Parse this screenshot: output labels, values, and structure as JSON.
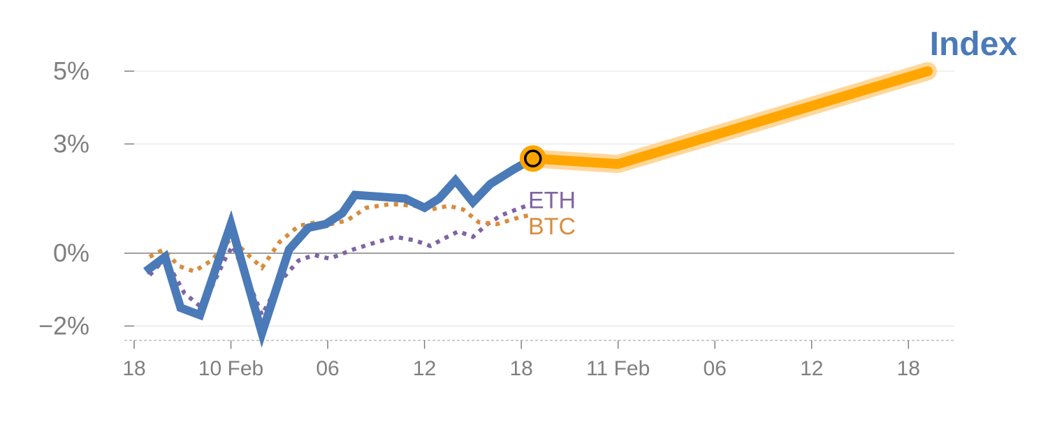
{
  "chart_data": {
    "type": "line",
    "title": "Index",
    "xlabel": "",
    "ylabel": "",
    "y_unit": "%",
    "ylim": [
      -2.4,
      5.4
    ],
    "yticks": [
      {
        "value": 5,
        "label": "5%"
      },
      {
        "value": 3,
        "label": "3%"
      },
      {
        "value": 0,
        "label": "0%"
      },
      {
        "value": -2,
        "label": "−2%"
      }
    ],
    "xlim": [
      0,
      85
    ],
    "xticks": [
      {
        "x": 0,
        "label": "18"
      },
      {
        "x": 10,
        "label": "10 Feb"
      },
      {
        "x": 20,
        "label": "06"
      },
      {
        "x": 30,
        "label": "12"
      },
      {
        "x": 40,
        "label": "18"
      },
      {
        "x": 50,
        "label": "11 Feb"
      },
      {
        "x": 60,
        "label": "06"
      },
      {
        "x": 70,
        "label": "12"
      },
      {
        "x": 80,
        "label": "18"
      }
    ],
    "grid": true,
    "zero_line": true,
    "series": [
      {
        "name": "",
        "style": "solid",
        "color": "#4a7ab8",
        "points": [
          [
            1.2,
            -0.5
          ],
          [
            3.2,
            -0.1
          ],
          [
            4.8,
            -1.5
          ],
          [
            6.8,
            -1.7
          ],
          [
            10.0,
            0.8
          ],
          [
            13.2,
            -2.2
          ],
          [
            16.0,
            0.1
          ],
          [
            18.0,
            0.7
          ],
          [
            19.8,
            0.8
          ],
          [
            21.5,
            1.1
          ],
          [
            22.8,
            1.6
          ],
          [
            25.5,
            1.55
          ],
          [
            28.0,
            1.5
          ],
          [
            30.0,
            1.25
          ],
          [
            31.5,
            1.5
          ],
          [
            33.2,
            2.0
          ],
          [
            35.0,
            1.4
          ],
          [
            36.8,
            1.9
          ],
          [
            39.2,
            2.3
          ],
          [
            41.2,
            2.6
          ]
        ]
      },
      {
        "name": "ETH",
        "style": "dotted",
        "color": "#8064a2",
        "points": [
          [
            1.6,
            -0.6
          ],
          [
            3.2,
            -0.15
          ],
          [
            5.2,
            -1.1
          ],
          [
            7.0,
            -1.5
          ],
          [
            9.5,
            -0.1
          ],
          [
            10.2,
            0.2
          ],
          [
            12.0,
            -0.9
          ],
          [
            13.2,
            -1.7
          ],
          [
            15.0,
            -0.8
          ],
          [
            17.0,
            -0.2
          ],
          [
            18.6,
            -0.05
          ],
          [
            20.2,
            -0.15
          ],
          [
            22.6,
            0.1
          ],
          [
            25.0,
            0.3
          ],
          [
            27.0,
            0.45
          ],
          [
            29.0,
            0.35
          ],
          [
            30.6,
            0.2
          ],
          [
            32.0,
            0.4
          ],
          [
            33.5,
            0.6
          ],
          [
            35.0,
            0.45
          ],
          [
            36.5,
            0.8
          ],
          [
            38.0,
            1.05
          ],
          [
            40.0,
            1.25
          ],
          [
            41.0,
            1.35
          ]
        ]
      },
      {
        "name": "BTC",
        "style": "dotted",
        "color": "#d98c3c",
        "points": [
          [
            1.6,
            -0.1
          ],
          [
            3.0,
            0.1
          ],
          [
            4.6,
            -0.35
          ],
          [
            6.2,
            -0.5
          ],
          [
            8.0,
            -0.2
          ],
          [
            10.0,
            0.4
          ],
          [
            11.2,
            0.1
          ],
          [
            13.2,
            -0.4
          ],
          [
            15.0,
            0.3
          ],
          [
            17.0,
            0.75
          ],
          [
            18.8,
            0.85
          ],
          [
            20.4,
            0.8
          ],
          [
            22.0,
            0.9
          ],
          [
            24.0,
            1.25
          ],
          [
            26.5,
            1.35
          ],
          [
            29.0,
            1.3
          ],
          [
            30.6,
            1.2
          ],
          [
            32.5,
            1.3
          ],
          [
            34.0,
            1.2
          ],
          [
            35.6,
            0.85
          ],
          [
            37.5,
            0.8
          ],
          [
            40.0,
            1.0
          ],
          [
            41.0,
            1.05
          ]
        ]
      },
      {
        "name": "",
        "style": "forecast",
        "color": "#ffa500",
        "points": [
          [
            41.2,
            2.6
          ],
          [
            50.0,
            2.45
          ],
          [
            82.0,
            5.0
          ]
        ]
      }
    ],
    "marker": {
      "x": 41.2,
      "y": 2.6,
      "fill": "#ffa500",
      "stroke": "#000000"
    },
    "colors": {
      "axis": "#7f7f7f",
      "grid": "#e0e0e0",
      "zero_line": "#808080",
      "index": "#4a7ab8",
      "forecast": "#ffa500",
      "forecast_glow": "#ffd79a"
    }
  }
}
